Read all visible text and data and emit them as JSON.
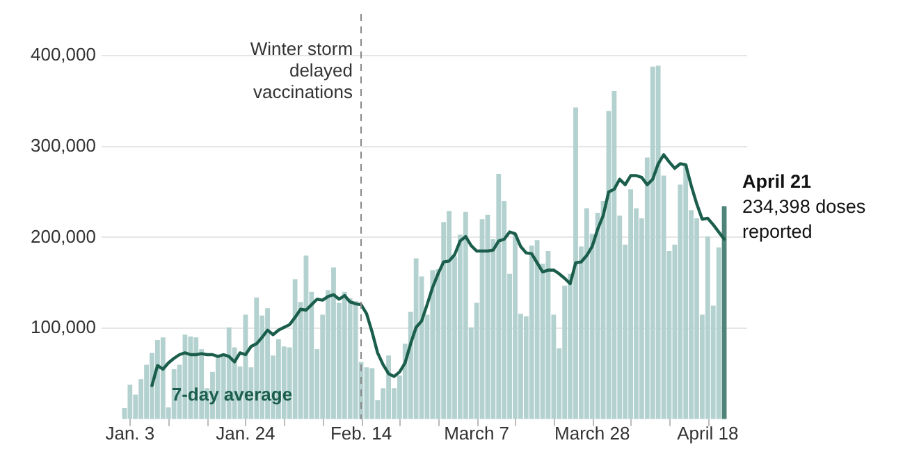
{
  "chart_data": {
    "type": "bar",
    "x": [
      "--01-02",
      "--01-03",
      "--01-04",
      "--01-05",
      "--01-06",
      "--01-07",
      "--01-08",
      "--01-09",
      "--01-10",
      "--01-11",
      "--01-12",
      "--01-13",
      "--01-14",
      "--01-15",
      "--01-16",
      "--01-17",
      "--01-18",
      "--01-19",
      "--01-20",
      "--01-21",
      "--01-22",
      "--01-23",
      "--01-24",
      "--01-25",
      "--01-26",
      "--01-27",
      "--01-28",
      "--01-29",
      "--01-30",
      "--01-31",
      "--02-01",
      "--02-02",
      "--02-03",
      "--02-04",
      "--02-05",
      "--02-06",
      "--02-07",
      "--02-08",
      "--02-09",
      "--02-10",
      "--02-11",
      "--02-12",
      "--02-13",
      "--02-14",
      "--02-15",
      "--02-16",
      "--02-17",
      "--02-18",
      "--02-19",
      "--02-20",
      "--02-21",
      "--02-22",
      "--02-23",
      "--02-24",
      "--02-25",
      "--02-26",
      "--02-27",
      "--02-28",
      "--03-01",
      "--03-02",
      "--03-03",
      "--03-04",
      "--03-05",
      "--03-06",
      "--03-07",
      "--03-08",
      "--03-09",
      "--03-10",
      "--03-11",
      "--03-12",
      "--03-13",
      "--03-14",
      "--03-15",
      "--03-16",
      "--03-17",
      "--03-18",
      "--03-19",
      "--03-20",
      "--03-21",
      "--03-22",
      "--03-23",
      "--03-24",
      "--03-25",
      "--03-26",
      "--03-27",
      "--03-28",
      "--03-29",
      "--03-30",
      "--03-31",
      "--04-01",
      "--04-02",
      "--04-03",
      "--04-04",
      "--04-05",
      "--04-06",
      "--04-07",
      "--04-08",
      "--04-09",
      "--04-10",
      "--04-11",
      "--04-12",
      "--04-13",
      "--04-14",
      "--04-15",
      "--04-16",
      "--04-17",
      "--04-18",
      "--04-19",
      "--04-20",
      "--04-21"
    ],
    "series": [
      {
        "colors": [
          "#b2d1cf",
          "#b2d1cf",
          "#b2d1cf",
          "#b2d1cf",
          "#b2d1cf",
          "#b2d1cf",
          "#b2d1cf",
          "#b2d1cf",
          "#b2d1cf",
          "#b2d1cf",
          "#b2d1cf",
          "#b2d1cf",
          "#b2d1cf",
          "#b2d1cf",
          "#b2d1cf",
          "#b2d1cf",
          "#b2d1cf",
          "#b2d1cf",
          "#b2d1cf",
          "#b2d1cf",
          "#b2d1cf",
          "#b2d1cf",
          "#b2d1cf",
          "#b2d1cf",
          "#b2d1cf",
          "#b2d1cf",
          "#b2d1cf",
          "#b2d1cf",
          "#b2d1cf",
          "#b2d1cf",
          "#b2d1cf",
          "#b2d1cf",
          "#b2d1cf",
          "#b2d1cf",
          "#b2d1cf",
          "#b2d1cf",
          "#b2d1cf",
          "#b2d1cf",
          "#b2d1cf",
          "#b2d1cf",
          "#b2d1cf",
          "#b2d1cf",
          "#b2d1cf",
          "#b2d1cf",
          "#b2d1cf",
          "#b2d1cf",
          "#b2d1cf",
          "#b2d1cf",
          "#b2d1cf",
          "#b2d1cf",
          "#b2d1cf",
          "#b2d1cf",
          "#b2d1cf",
          "#b2d1cf",
          "#b2d1cf",
          "#b2d1cf",
          "#b2d1cf",
          "#b2d1cf",
          "#b2d1cf",
          "#b2d1cf",
          "#b2d1cf",
          "#b2d1cf",
          "#b2d1cf",
          "#b2d1cf",
          "#b2d1cf",
          "#b2d1cf",
          "#b2d1cf",
          "#b2d1cf",
          "#b2d1cf",
          "#b2d1cf",
          "#b2d1cf",
          "#b2d1cf",
          "#b2d1cf",
          "#b2d1cf",
          "#b2d1cf",
          "#b2d1cf",
          "#b2d1cf",
          "#b2d1cf",
          "#b2d1cf",
          "#b2d1cf",
          "#b2d1cf",
          "#b2d1cf",
          "#b2d1cf",
          "#b2d1cf",
          "#b2d1cf",
          "#b2d1cf",
          "#b2d1cf",
          "#b2d1cf",
          "#b2d1cf",
          "#b2d1cf",
          "#b2d1cf",
          "#b2d1cf",
          "#b2d1cf",
          "#b2d1cf",
          "#b2d1cf",
          "#b2d1cf",
          "#b2d1cf",
          "#b2d1cf",
          "#b2d1cf",
          "#b2d1cf",
          "#b2d1cf",
          "#b2d1cf",
          "#b2d1cf",
          "#b2d1cf",
          "#b2d1cf",
          "#b2d1cf",
          "#b2d1cf",
          "#b2d1cf",
          "#b2d1cf",
          "#4e8479"
        ],
        "values": [
          12000,
          38000,
          27000,
          44000,
          60000,
          73000,
          87000,
          90000,
          13000,
          55000,
          60000,
          93000,
          91000,
          90000,
          77000,
          34000,
          52000,
          70000,
          72000,
          101000,
          79000,
          58000,
          115000,
          57000,
          134000,
          114000,
          122000,
          70000,
          88000,
          80000,
          79000,
          154000,
          129000,
          180000,
          140000,
          77000,
          115000,
          142000,
          167000,
          128000,
          140000,
          133000,
          130000,
          63000,
          57000,
          56000,
          21000,
          34000,
          70000,
          34000,
          48000,
          83000,
          118000,
          177000,
          157000,
          115000,
          164000,
          165000,
          217000,
          229000,
          179000,
          203000,
          228000,
          101000,
          128000,
          220000,
          225000,
          198000,
          270000,
          240000,
          160000,
          204000,
          116000,
          113000,
          191000,
          197000,
          171000,
          185000,
          115000,
          78000,
          147000,
          160000,
          343000,
          190000,
          232000,
          204000,
          227000,
          240000,
          339000,
          361000,
          224000,
          192000,
          253000,
          232000,
          221000,
          288000,
          388000,
          389000,
          268000,
          185000,
          192000,
          258000,
          280000,
          230000,
          221000,
          115000,
          201000,
          125000,
          189000,
          234398
        ]
      },
      {
        "type": "line",
        "name": "7-day average",
        "color": "#1b5e4b",
        "values": [
          null,
          null,
          null,
          null,
          null,
          37000,
          59000,
          55000,
          62000,
          67000,
          71000,
          73000,
          71000,
          71000,
          72000,
          71000,
          71000,
          69000,
          71000,
          69000,
          63000,
          73000,
          71000,
          80000,
          83000,
          90000,
          98000,
          93000,
          98000,
          101000,
          104000,
          112000,
          121000,
          120000,
          126000,
          132000,
          131000,
          135000,
          137000,
          132000,
          136000,
          129000,
          127000,
          126000,
          116000,
          96000,
          73000,
          60000,
          50000,
          47000,
          52000,
          62000,
          83000,
          101000,
          108000,
          126000,
          145000,
          160000,
          173000,
          174000,
          181000,
          196000,
          201000,
          191000,
          185000,
          185000,
          185000,
          186000,
          196000,
          198000,
          206000,
          204000,
          190000,
          183000,
          182000,
          172000,
          162000,
          164000,
          164000,
          160000,
          155000,
          149000,
          172000,
          173000,
          180000,
          190000,
          209000,
          224000,
          250000,
          253000,
          264000,
          258000,
          268000,
          268000,
          266000,
          258000,
          264000,
          281000,
          291000,
          283000,
          276000,
          281000,
          280000,
          257000,
          237000,
          220000,
          221000,
          214000,
          206000,
          198000
        ]
      }
    ],
    "xlim": [
      "--01-02",
      "--04-21"
    ],
    "xticks": [
      {
        "value": "--01-03",
        "label": "Jan. 3"
      },
      {
        "value": "--01-10",
        "label": null
      },
      {
        "value": "--01-17",
        "label": null
      },
      {
        "value": "--01-24",
        "label": "Jan. 24"
      },
      {
        "value": "--01-31",
        "label": null
      },
      {
        "value": "--02-07",
        "label": null
      },
      {
        "value": "--02-14",
        "label": "Feb. 14"
      },
      {
        "value": "--02-21",
        "label": null
      },
      {
        "value": "--02-28",
        "label": null
      },
      {
        "value": "--03-07",
        "label": "March 7"
      },
      {
        "value": "--03-14",
        "label": null
      },
      {
        "value": "--03-21",
        "label": null
      },
      {
        "value": "--03-28",
        "label": "March 28"
      },
      {
        "value": "--04-04",
        "label": null
      },
      {
        "value": "--04-11",
        "label": null
      },
      {
        "value": "--04-18",
        "label": "April 18"
      }
    ],
    "ylim": [
      0,
      400000
    ],
    "yticks": [
      {
        "value": 100000,
        "label": "100,000"
      },
      {
        "value": 200000,
        "label": "200,000"
      },
      {
        "value": 300000,
        "label": "300,000"
      },
      {
        "value": 400000,
        "label": "400,000"
      }
    ],
    "ref_lines": [
      {
        "axis": "x",
        "value": "--02-14",
        "label": "Winter storm\ndelayed\nvaccinations",
        "color": "#888888",
        "line_style": "dashed"
      }
    ],
    "annotations": [
      {
        "text": "April 21\n234,398 doses\nreported",
        "x": "--04-21",
        "y": 234398
      }
    ],
    "grid": "y",
    "legend": false,
    "marker": "none",
    "line_style": "solid"
  }
}
